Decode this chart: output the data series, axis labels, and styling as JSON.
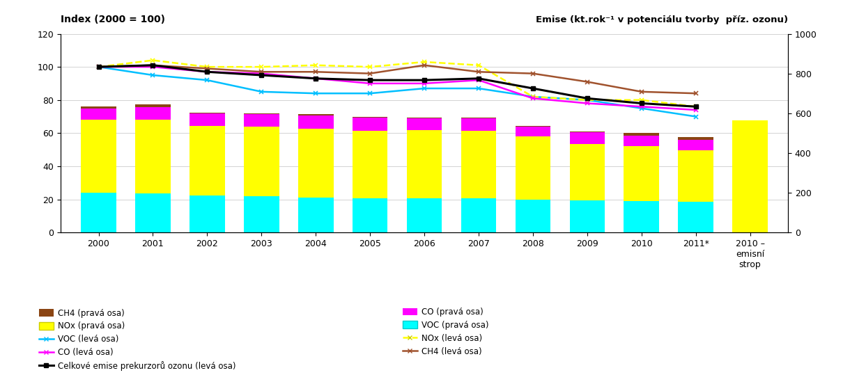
{
  "years": [
    2000,
    2001,
    2002,
    2003,
    2004,
    2005,
    2006,
    2007,
    2008,
    2009,
    2010,
    2011
  ],
  "year_labels": [
    "2000",
    "2001",
    "2002",
    "2003",
    "2004",
    "2005",
    "2006",
    "2007",
    "2008",
    "2009",
    "2010",
    "2011*"
  ],
  "emission_ceiling_label": "2010 –\nemisní\nstrop",
  "bar_VOC": [
    24.0,
    23.5,
    22.5,
    22.0,
    21.0,
    20.5,
    20.5,
    20.5,
    20.0,
    19.5,
    19.0,
    18.5
  ],
  "bar_NOx": [
    44.0,
    44.5,
    42.0,
    42.0,
    41.5,
    41.0,
    41.5,
    41.0,
    38.0,
    34.0,
    33.0,
    31.0
  ],
  "bar_CO": [
    7.0,
    7.5,
    7.5,
    7.5,
    8.0,
    8.0,
    7.0,
    7.5,
    6.0,
    7.0,
    6.5,
    6.5
  ],
  "bar_CH4": [
    1.0,
    2.0,
    0.5,
    0.5,
    1.0,
    0.5,
    0.5,
    0.5,
    0.5,
    0.5,
    1.5,
    1.5
  ],
  "ceiling_bar_NOx": 67.5,
  "line_VOC_left": [
    100,
    95,
    92,
    85,
    84,
    84,
    87,
    87,
    82,
    80,
    75,
    70
  ],
  "line_NOx_left": [
    100,
    104,
    100,
    100,
    101,
    100,
    103,
    101,
    82,
    80,
    80,
    76
  ],
  "line_CO_left": [
    100,
    100,
    97,
    96,
    93,
    90,
    90,
    92,
    81,
    78,
    76,
    74
  ],
  "line_CH4_left": [
    100,
    101,
    99,
    97,
    97,
    96,
    101,
    97,
    96,
    91,
    85,
    84
  ],
  "line_total_left": [
    100,
    101,
    97,
    95,
    93,
    92,
    92,
    93,
    87,
    81,
    78,
    76
  ],
  "bar_color_VOC": "#00FFFF",
  "bar_color_NOx": "#FFFF00",
  "bar_color_CO": "#FF00FF",
  "bar_color_CH4": "#8B4513",
  "ceiling_color": "#FFFF00",
  "line_color_VOC": "#00BFFF",
  "line_color_NOx": "#FFFF00",
  "line_color_CO": "#FF00FF",
  "line_color_CH4": "#A0522D",
  "line_color_total": "#000000",
  "left_title": "Index (2000 = 100)",
  "right_title": "Emise (kt.rok⁻¹ v potenciálu tvorby  příz. ozonu)",
  "left_ylim": [
    0,
    120
  ],
  "right_ylim": [
    0,
    1000
  ],
  "left_yticks": [
    0,
    20,
    40,
    60,
    80,
    100,
    120
  ],
  "right_yticks": [
    0,
    200,
    400,
    600,
    800,
    1000
  ],
  "figsize": [
    12.43,
    5.39
  ],
  "dpi": 100
}
